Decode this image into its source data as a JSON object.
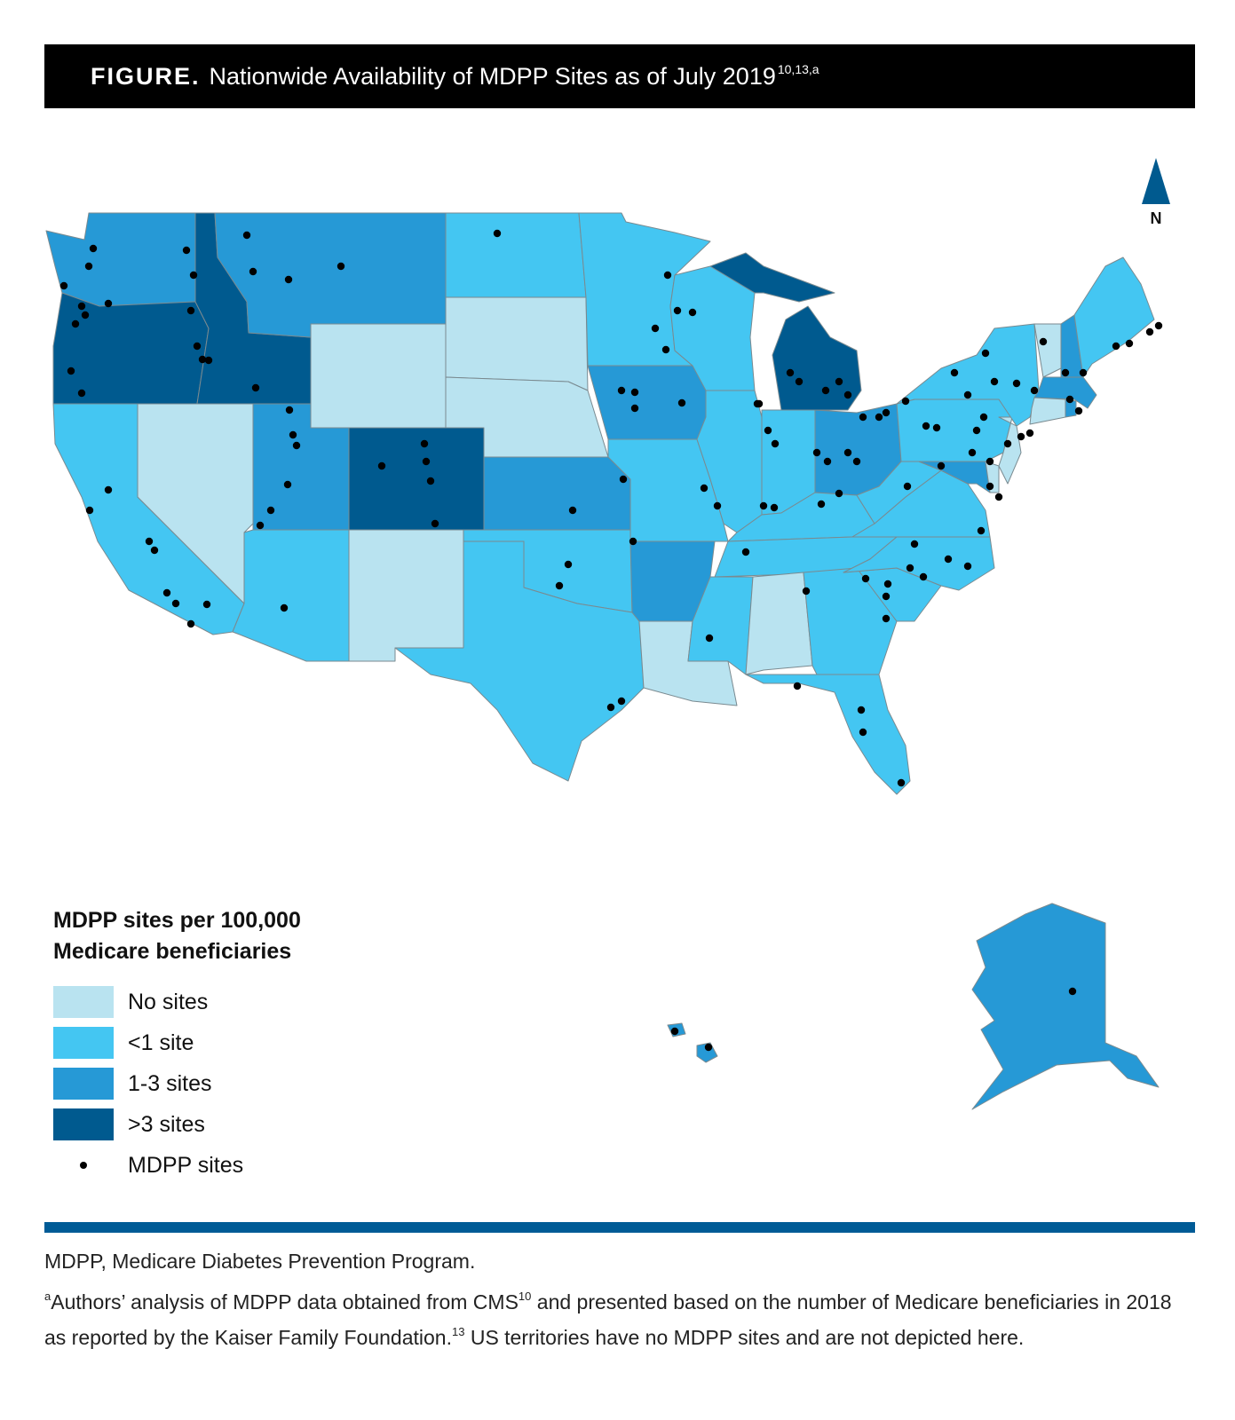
{
  "figure": {
    "label": "FIGURE.",
    "title": "Nationwide Availability of MDPP Sites as of July 2019",
    "title_refs": "10,13,a"
  },
  "compass": {
    "label": "N",
    "icon": "north-arrow-icon"
  },
  "legend": {
    "title_line1": "MDPP sites per 100,000",
    "title_line2": "Medicare beneficiaries",
    "items": [
      {
        "key": "none",
        "label": "No sites",
        "color": "#b9e3f0"
      },
      {
        "key": "low",
        "label": "<1 site",
        "color": "#44c6f2"
      },
      {
        "key": "mid",
        "label": "1-3 sites",
        "color": "#2699d6"
      },
      {
        "key": "high",
        "label": ">3 sites",
        "color": "#005a8f"
      }
    ],
    "sites_label": "MDPP sites"
  },
  "state_categories": {
    "WA": "mid",
    "OR": "high",
    "CA": "low",
    "NV": "none",
    "ID": "high",
    "MT": "mid",
    "WY": "none",
    "UT": "mid",
    "CO": "high",
    "AZ": "low",
    "NM": "none",
    "ND": "low",
    "SD": "none",
    "NE": "none",
    "KS": "mid",
    "OK": "low",
    "TX": "low",
    "MN": "low",
    "IA": "mid",
    "MO": "low",
    "AR": "mid",
    "LA": "none",
    "WI": "low",
    "IL": "low",
    "MI": "high",
    "IN": "low",
    "OH": "mid",
    "KY": "low",
    "TN": "low",
    "MS": "low",
    "AL": "none",
    "GA": "low",
    "FL": "low",
    "SC": "low",
    "NC": "low",
    "VA": "low",
    "WV": "low",
    "PA": "low",
    "NY": "low",
    "VT": "none",
    "NH": "mid",
    "ME": "low",
    "MA": "mid",
    "RI": "mid",
    "CT": "none",
    "NJ": "none",
    "DE": "none",
    "MD": "mid",
    "AK": "mid",
    "HI": "mid"
  },
  "footnotes": {
    "abbrev": "MDPP, Medicare Diabetes Prevention Program.",
    "note_marker": "a",
    "note_part1": "Authors’ analysis of MDPP data obtained from CMS",
    "note_ref1": "10",
    "note_part2": " and presented based on the number of Medicare beneficiaries in 2018 as reported by the Kaiser Family Foundation.",
    "note_ref2": "13",
    "note_part3": " US territories have no MDPP sites and are not depicted here."
  }
}
